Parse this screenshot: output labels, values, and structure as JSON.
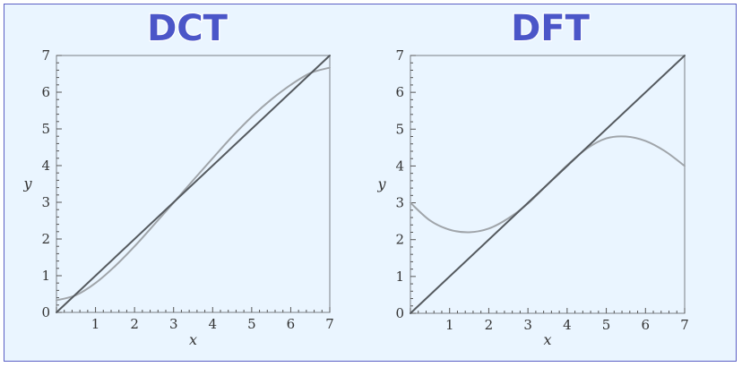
{
  "chart_data": [
    {
      "type": "line",
      "title": "DCT",
      "xlabel": "x",
      "ylabel": "y",
      "xlim": [
        0,
        7
      ],
      "ylim": [
        0,
        7
      ],
      "xticks": [
        "1",
        "2",
        "3",
        "4",
        "5",
        "6",
        "7"
      ],
      "yticks": [
        "0",
        "1",
        "2",
        "3",
        "4",
        "5",
        "6",
        "7"
      ],
      "grid": false,
      "series": [
        {
          "color": "#555a5f",
          "x": [
            0,
            7
          ],
          "y": [
            0,
            7
          ]
        },
        {
          "color": "#a0a5aa",
          "x": [
            0,
            0.5,
            1,
            1.5,
            2,
            2.5,
            3,
            3.5,
            4,
            4.5,
            5,
            5.5,
            6,
            6.5,
            7
          ],
          "y": [
            0.33,
            0.47,
            0.8,
            1.26,
            1.8,
            2.39,
            2.99,
            3.6,
            4.2,
            4.79,
            5.33,
            5.8,
            6.2,
            6.52,
            6.67
          ]
        }
      ]
    },
    {
      "type": "line",
      "title": "DFT",
      "xlabel": "x",
      "ylabel": "y",
      "xlim": [
        0,
        7
      ],
      "ylim": [
        0,
        7
      ],
      "xticks": [
        "1",
        "2",
        "3",
        "4",
        "5",
        "6",
        "7"
      ],
      "yticks": [
        "0",
        "1",
        "2",
        "3",
        "4",
        "5",
        "6",
        "7"
      ],
      "grid": false,
      "series": [
        {
          "color": "#555a5f",
          "x": [
            0,
            7
          ],
          "y": [
            0,
            7
          ]
        },
        {
          "color": "#a0a5aa",
          "x": [
            0,
            0.5,
            1,
            1.5,
            2,
            2.5,
            3,
            3.5,
            4,
            4.5,
            5,
            5.5,
            6,
            6.5,
            7
          ],
          "y": [
            3.0,
            2.52,
            2.27,
            2.2,
            2.3,
            2.58,
            2.98,
            3.5,
            4.02,
            4.47,
            4.75,
            4.8,
            4.68,
            4.4,
            4.0
          ]
        }
      ]
    }
  ]
}
